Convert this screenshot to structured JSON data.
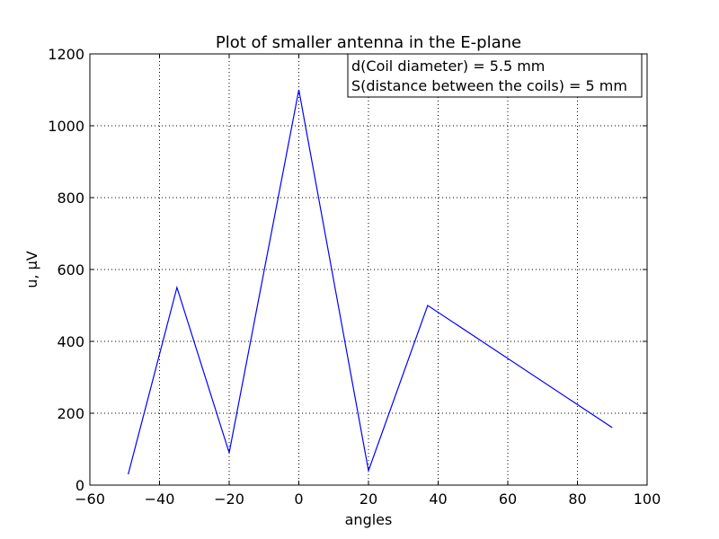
{
  "chart_data": {
    "type": "line",
    "title": "Plot of smaller antenna in the E-plane",
    "xlabel": "angles",
    "ylabel": "u, µV",
    "xlim": [
      -60,
      100
    ],
    "ylim": [
      0,
      1200
    ],
    "xticks": [
      -60,
      -40,
      -20,
      0,
      20,
      40,
      60,
      80,
      100
    ],
    "xtick_labels": [
      "−60",
      "−40",
      "−20",
      "0",
      "20",
      "40",
      "60",
      "80",
      "100"
    ],
    "yticks": [
      0,
      200,
      400,
      600,
      800,
      1000,
      1200
    ],
    "ytick_labels": [
      "0",
      "200",
      "400",
      "600",
      "800",
      "1000",
      "1200"
    ],
    "grid": true,
    "grid_style": "dotted",
    "annotation_box": {
      "lines": [
        "d(Coil diameter) = 5.5 mm",
        "S(distance between the coils) = 5 mm"
      ],
      "placement": "top-right"
    },
    "series": [
      {
        "color": "#0000ff",
        "x": [
          -49,
          -35,
          -20,
          0,
          20,
          37,
          90
        ],
        "y": [
          30,
          550,
          90,
          1100,
          40,
          500,
          160
        ]
      }
    ]
  }
}
